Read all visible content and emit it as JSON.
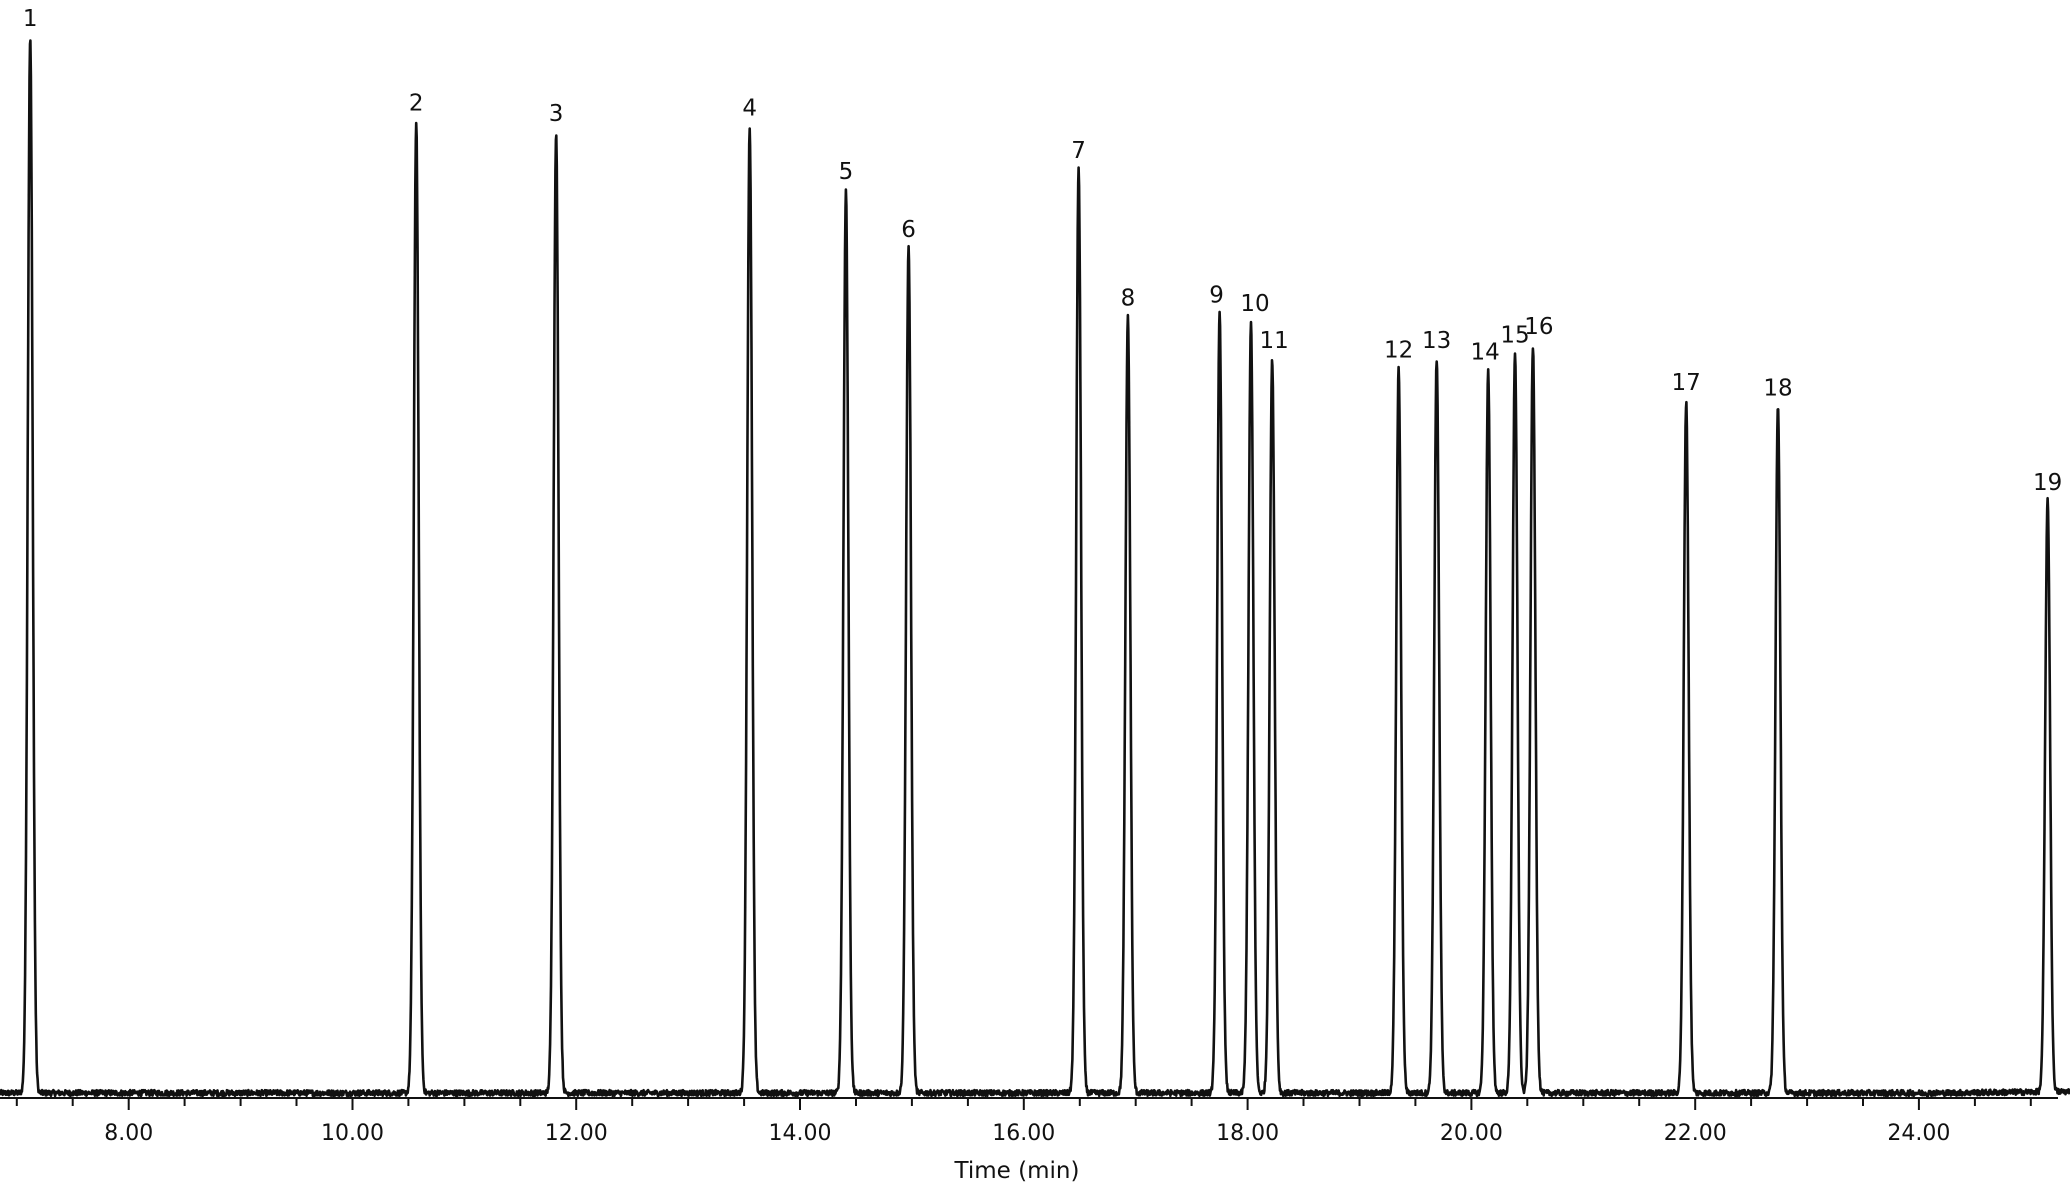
{
  "chart_data": {
    "type": "line",
    "title": "",
    "xlabel": "Time (min)",
    "ylabel": "",
    "xlim": [
      6.85,
      25.35
    ],
    "ylim": [
      0,
      100
    ],
    "x_ticks": [
      8.0,
      10.0,
      12.0,
      14.0,
      16.0,
      18.0,
      20.0,
      22.0,
      24.0
    ],
    "x_tick_labels": [
      "8.00",
      "10.00",
      "12.00",
      "14.00",
      "16.00",
      "18.00",
      "20.00",
      "22.00",
      "24.00"
    ],
    "minor_tick_step": 0.5,
    "grid": false,
    "peaks": [
      {
        "label": "1",
        "time": 7.12,
        "height": 100.0
      },
      {
        "label": "2",
        "time": 10.57,
        "height": 92.0
      },
      {
        "label": "3",
        "time": 11.82,
        "height": 91.0
      },
      {
        "label": "4",
        "time": 13.55,
        "height": 91.5
      },
      {
        "label": "5",
        "time": 14.41,
        "height": 85.5
      },
      {
        "label": "6",
        "time": 14.97,
        "height": 80.0
      },
      {
        "label": "7",
        "time": 16.49,
        "height": 87.5
      },
      {
        "label": "8",
        "time": 16.93,
        "height": 73.5
      },
      {
        "label": "9",
        "time": 17.75,
        "height": 73.8
      },
      {
        "label": "10",
        "time": 18.03,
        "height": 73.0
      },
      {
        "label": "11",
        "time": 18.22,
        "height": 69.5
      },
      {
        "label": "12",
        "time": 19.35,
        "height": 68.6
      },
      {
        "label": "13",
        "time": 19.69,
        "height": 69.5
      },
      {
        "label": "14",
        "time": 20.15,
        "height": 68.4
      },
      {
        "label": "15",
        "time": 20.39,
        "height": 70.0
      },
      {
        "label": "16",
        "time": 20.55,
        "height": 70.8
      },
      {
        "label": "17",
        "time": 21.92,
        "height": 65.5
      },
      {
        "label": "18",
        "time": 22.74,
        "height": 65.0
      },
      {
        "label": "19",
        "time": 25.15,
        "height": 56.0
      }
    ]
  }
}
